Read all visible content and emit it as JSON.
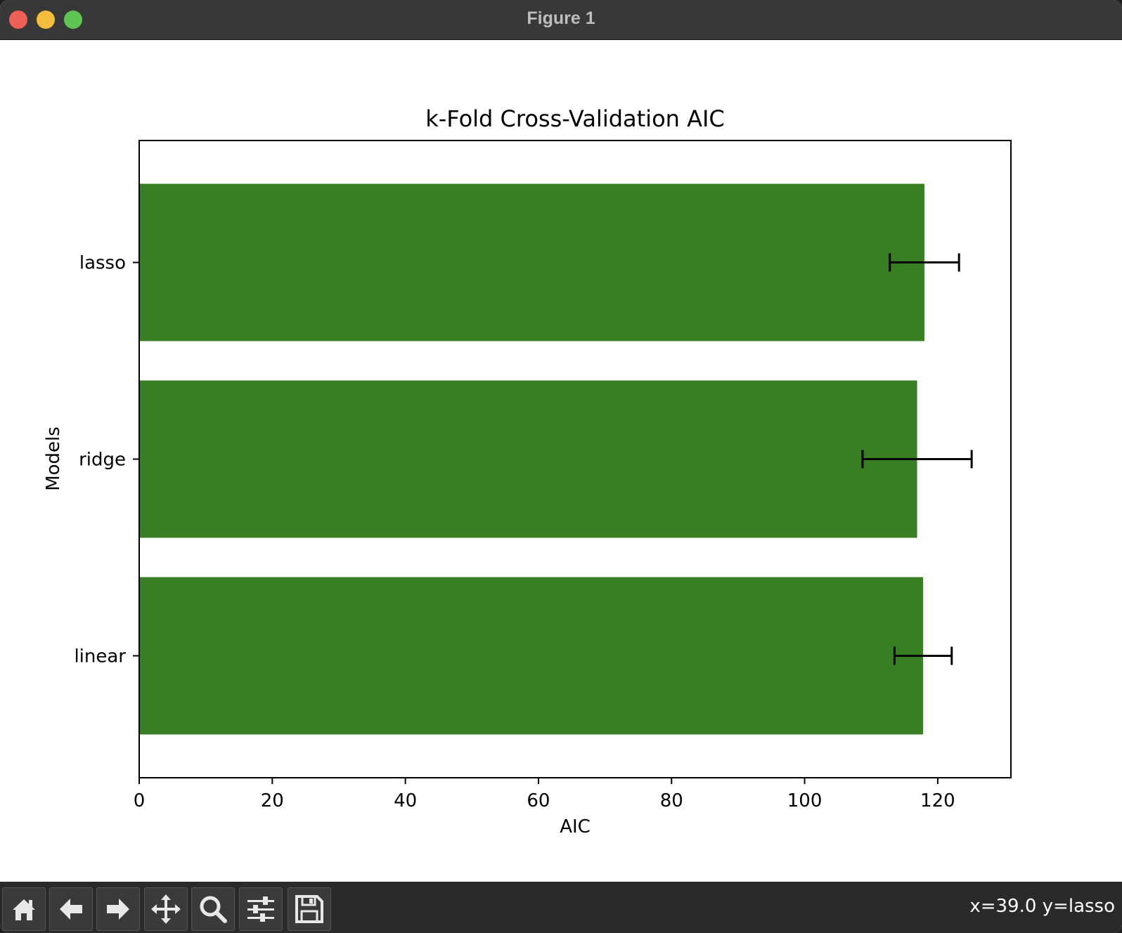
{
  "window": {
    "title": "Figure 1"
  },
  "toolbar": {
    "buttons": [
      {
        "name": "home-icon"
      },
      {
        "name": "back-arrow-icon"
      },
      {
        "name": "forward-arrow-icon"
      },
      {
        "name": "pan-move-icon"
      },
      {
        "name": "zoom-magnifier-icon"
      },
      {
        "name": "configure-subplots-icon"
      },
      {
        "name": "save-floppy-icon"
      }
    ],
    "coords": "x=39.0 y=lasso"
  },
  "colors": {
    "bar": "#387e22",
    "errorbar": "#000000"
  },
  "chart_data": {
    "type": "bar",
    "orientation": "horizontal",
    "title": "k-Fold Cross-Validation AIC",
    "xlabel": "AIC",
    "ylabel": "Models",
    "categories": [
      "linear",
      "ridge",
      "lasso"
    ],
    "values": [
      117.8,
      116.9,
      118.0
    ],
    "errors": [
      4.3,
      8.2,
      5.2
    ],
    "xlim": [
      0,
      131
    ],
    "xticks": [
      0,
      20,
      40,
      60,
      80,
      100,
      120
    ],
    "grid": false
  }
}
